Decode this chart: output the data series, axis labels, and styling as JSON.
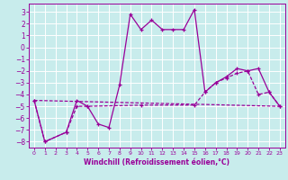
{
  "xlabel": "Windchill (Refroidissement éolien,°C)",
  "bg_color": "#c8ecec",
  "grid_color": "#ffffff",
  "line_color": "#990099",
  "xlim": [
    -0.5,
    23.5
  ],
  "ylim": [
    -8.5,
    3.7
  ],
  "yticks": [
    -8,
    -7,
    -6,
    -5,
    -4,
    -3,
    -2,
    -1,
    0,
    1,
    2,
    3
  ],
  "xticks": [
    0,
    1,
    2,
    3,
    4,
    5,
    6,
    7,
    8,
    9,
    10,
    11,
    12,
    13,
    14,
    15,
    16,
    17,
    18,
    19,
    20,
    21,
    22,
    23
  ],
  "series1_x": [
    0,
    1,
    3,
    4,
    5,
    6,
    7,
    8,
    9,
    10,
    11,
    12,
    13,
    14,
    15,
    16,
    17,
    18,
    19,
    20,
    21,
    22,
    23
  ],
  "series1_y": [
    -4.5,
    -8.0,
    -7.2,
    -4.5,
    -5.0,
    -6.5,
    -6.8,
    -3.2,
    2.8,
    1.5,
    2.3,
    1.5,
    1.5,
    1.5,
    3.2,
    -3.8,
    -3.0,
    -2.5,
    -1.8,
    -2.0,
    -1.8,
    -3.8,
    -5.0
  ],
  "series2_x": [
    0,
    1,
    3,
    4,
    5,
    10,
    15,
    16,
    17,
    18,
    19,
    20,
    21,
    22,
    23
  ],
  "series2_y": [
    -4.5,
    -8.0,
    -7.2,
    -5.0,
    -5.0,
    -4.9,
    -4.9,
    -3.8,
    -3.0,
    -2.6,
    -2.2,
    -2.0,
    -4.0,
    -3.8,
    -5.0
  ],
  "series3_x": [
    0,
    23
  ],
  "series3_y": [
    -4.5,
    -5.0
  ]
}
